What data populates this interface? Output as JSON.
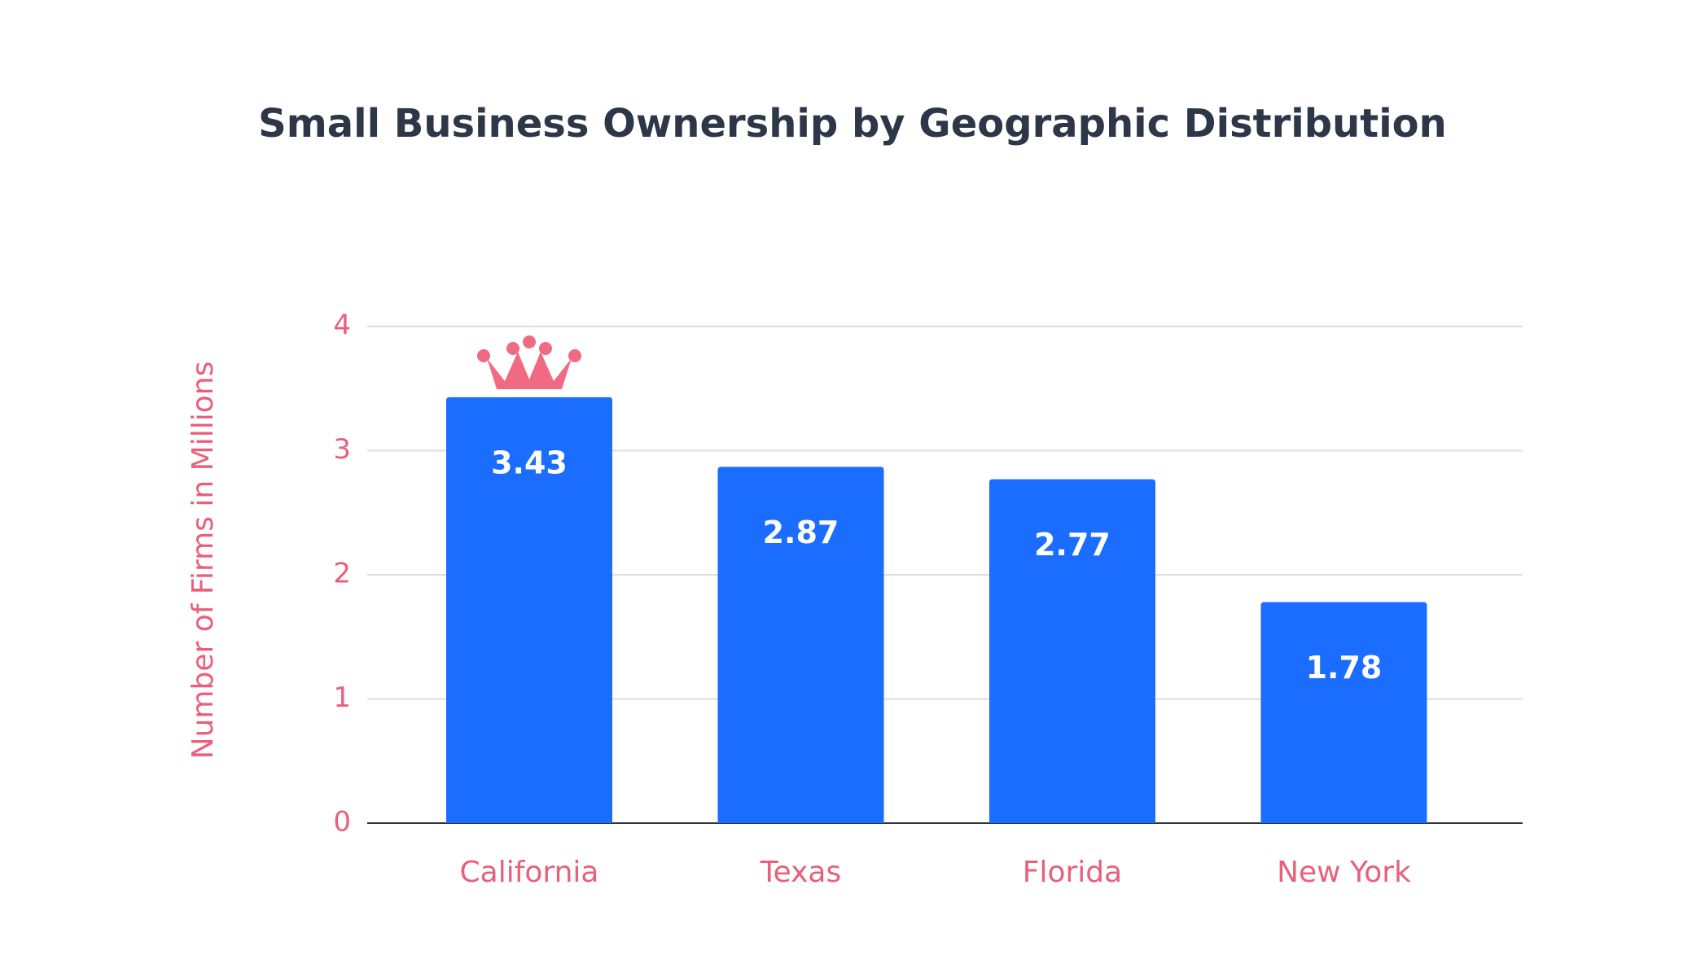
{
  "chart_data": {
    "type": "bar",
    "title": "Small Business Ownership by Geographic Distribution",
    "y_label": "Number of Firms in Millions",
    "categories": [
      "California",
      "Texas",
      "Florida",
      "New York"
    ],
    "values": [
      3.43,
      2.87,
      2.77,
      1.78
    ],
    "color": "#1a6dff",
    "ylim": [
      0,
      4
    ],
    "yticks": [
      0,
      1,
      2,
      3,
      4
    ],
    "grid": true
  }
}
